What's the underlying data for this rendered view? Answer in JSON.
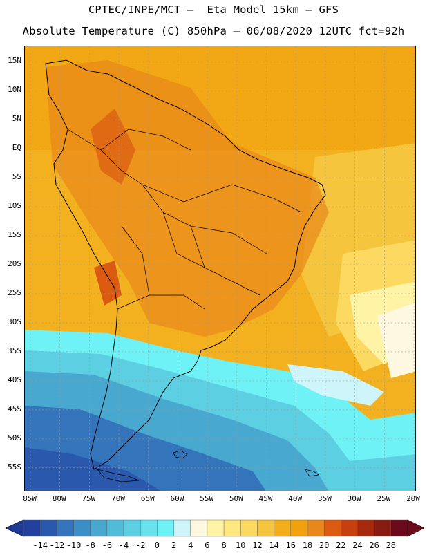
{
  "header": {
    "title_line1": "CPTEC/INPE/MCT –  Eta Model 15km – GFS",
    "title_line2": "Absolute Temperature (C) 850hPa – 06/08/2020 12UTC fct=92h"
  },
  "map": {
    "variable": "Absolute Temperature (C) 850hPa",
    "lon_range": [
      -85,
      -20
    ],
    "lat_range": [
      -58,
      16
    ],
    "lat_labels": [
      "15N",
      "10N",
      "5N",
      "EQ",
      "5S",
      "10S",
      "15S",
      "20S",
      "25S",
      "30S",
      "35S",
      "40S",
      "45S",
      "50S",
      "55S"
    ],
    "lat_values": [
      15,
      10,
      5,
      0,
      -5,
      -10,
      -15,
      -20,
      -25,
      -30,
      -35,
      -40,
      -45,
      -50,
      -55
    ],
    "lon_labels": [
      "85W",
      "80W",
      "75W",
      "70W",
      "65W",
      "60W",
      "55W",
      "50W",
      "45W",
      "40W",
      "35W",
      "30W",
      "25W",
      "20W"
    ],
    "lon_values": [
      -85,
      -80,
      -75,
      -70,
      -65,
      -60,
      -55,
      -50,
      -45,
      -40,
      -35,
      -30,
      -25,
      -20
    ]
  },
  "colorbar": {
    "labels": [
      "-14",
      "-12",
      "-10",
      "-8",
      "-6",
      "-4",
      "-2",
      "0",
      "2",
      "4",
      "6",
      "8",
      "10",
      "12",
      "14",
      "16",
      "18",
      "20",
      "22",
      "24",
      "26",
      "28"
    ],
    "under_color": "#1f3a93",
    "over_color": "#6a0a1a",
    "colors": [
      "#22409c",
      "#2a58ad",
      "#3374bb",
      "#3b8fc6",
      "#48a8cf",
      "#51bcd8",
      "#5ccfe2",
      "#6ae2ee",
      "#6ff2f6",
      "#cdf5fa",
      "#fff8e0",
      "#fff3a5",
      "#ffe880",
      "#fcd960",
      "#f6c53e",
      "#f2ae1b",
      "#f0a10c",
      "#e8871a",
      "#db5a12",
      "#c6400f",
      "#a52a0d",
      "#861d10",
      "#6a0a1a"
    ]
  }
}
